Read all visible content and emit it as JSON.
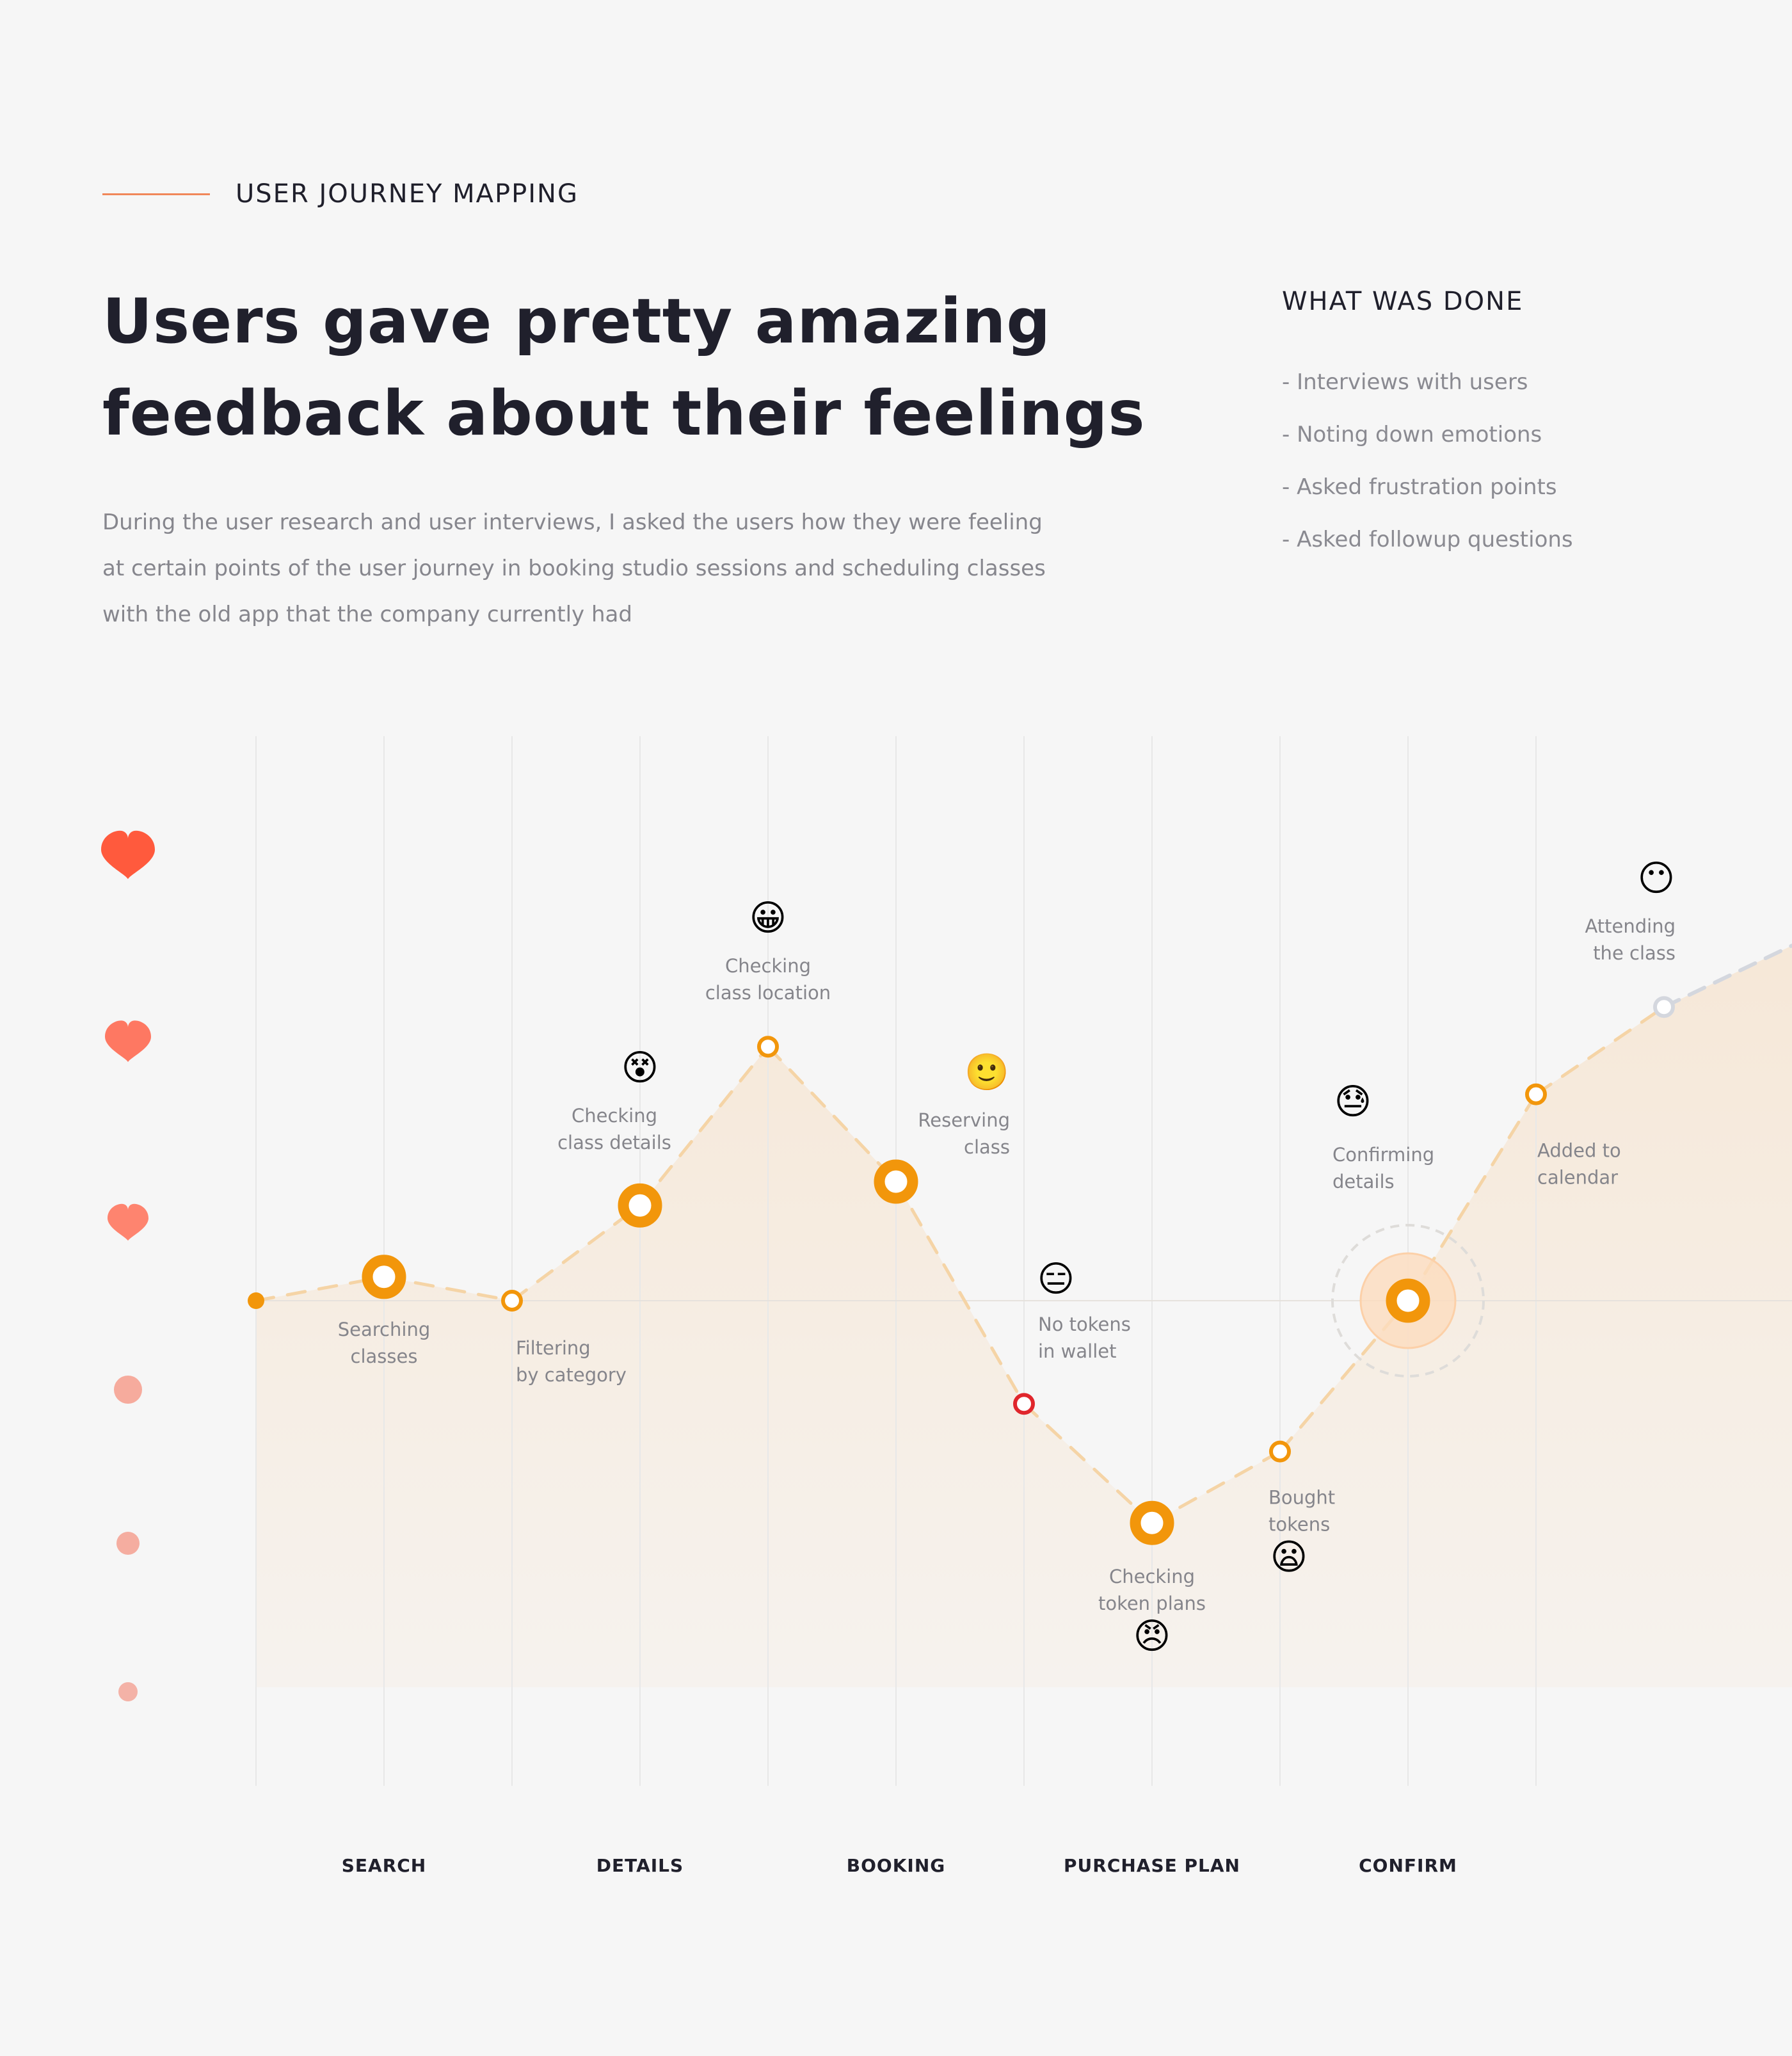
{
  "section": {
    "label": "USER JOURNEY MAPPING"
  },
  "headline": {
    "line1": "Users gave pretty amazing",
    "line2": "feedback about their feelings"
  },
  "lead": {
    "line1": "During the user research and user interviews, I asked the users how they were feeling",
    "line2": "at certain points of the user journey in booking studio sessions and scheduling classes",
    "line3": "with the old app that the company currently had"
  },
  "what_was_done": {
    "title": "WHAT WAS DONE",
    "items": [
      "- Interviews with users",
      "- Noting down emotions",
      "- Asked frustration points",
      "- Asked followup questions"
    ]
  },
  "colors": {
    "accent": "#f2960b",
    "line": "#f5d4a6",
    "fill": "#f6e7d6",
    "heart": "#ff6a4f",
    "negative": "#e0262c",
    "future": "#d4d7de"
  },
  "chart_data": {
    "type": "line",
    "title": "",
    "xlabel": "",
    "ylabel": "",
    "stages": [
      "SEARCH",
      "DETAILS",
      "BOOKING",
      "PURCHASE PLAN",
      "CONFIRM"
    ],
    "y_scale_icons": [
      "heart-large",
      "heart-medium",
      "heart-small",
      "dot-large",
      "dot-medium",
      "dot-small"
    ],
    "ylim": [
      -3.5,
      6.5
    ],
    "grid": true,
    "points": [
      {
        "x": 0,
        "y": 0,
        "label": "",
        "emoji": "",
        "marker": "dot"
      },
      {
        "x": 0.5,
        "y": 0.3,
        "label": "Searching\nclasses",
        "emoji": "",
        "marker": "ring"
      },
      {
        "x": 1,
        "y": 0,
        "label": "Filtering\nby category",
        "emoji": "",
        "marker": "hollow"
      },
      {
        "x": 1.5,
        "y": 1.2,
        "label": "Checking\nclass details",
        "emoji": "😵",
        "marker": "ring"
      },
      {
        "x": 2,
        "y": 3.2,
        "label": "Checking\nclass location",
        "emoji": "😀",
        "marker": "hollow"
      },
      {
        "x": 2.5,
        "y": 1.5,
        "label": "Reserving\nclass",
        "emoji": "🙂",
        "marker": "ring"
      },
      {
        "x": 3,
        "y": -1.3,
        "label": "No tokens\nin wallet",
        "emoji": "😑",
        "marker": "negative"
      },
      {
        "x": 3.5,
        "y": -2.8,
        "label": "Checking\ntoken plans",
        "emoji": "😠",
        "marker": "ring"
      },
      {
        "x": 4,
        "y": -1.9,
        "label": "Bought\ntokens",
        "emoji": "😦",
        "marker": "hollow"
      },
      {
        "x": 4.5,
        "y": 0,
        "label": "Confirming\ndetails",
        "emoji": "😓",
        "marker": "highlight"
      },
      {
        "x": 5,
        "y": 2.6,
        "label": "Added to\ncalendar",
        "emoji": "",
        "marker": "hollow"
      },
      {
        "x": 5.5,
        "y": 3.7,
        "label": "Attending\nthe class",
        "emoji": "😶",
        "marker": "future"
      }
    ]
  }
}
